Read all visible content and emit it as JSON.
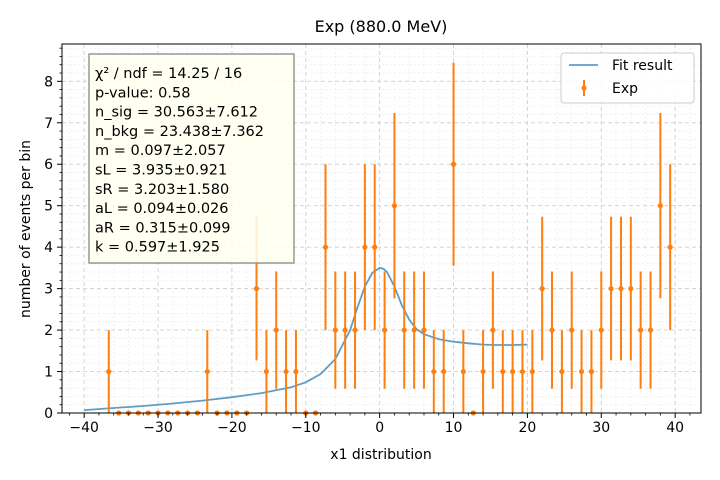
{
  "chart_data": {
    "type": "scatter",
    "title": "Exp (880.0 MeV)",
    "xlabel": "x1 distribution",
    "ylabel": "number of events per bin",
    "xlim": [
      -43,
      43.5
    ],
    "ylim": [
      0,
      8.9
    ],
    "xticks": [
      -40,
      -30,
      -20,
      -10,
      0,
      10,
      20,
      30,
      40
    ],
    "xtick_labels": [
      "−40",
      "−30",
      "−20",
      "−10",
      "0",
      "10",
      "20",
      "30",
      "40"
    ],
    "yticks": [
      0,
      1,
      2,
      3,
      4,
      5,
      6,
      7,
      8
    ],
    "ytick_labels": [
      "0",
      "1",
      "2",
      "3",
      "4",
      "5",
      "6",
      "7",
      "8"
    ],
    "grid": true,
    "legend_position": "top-right",
    "series": [
      {
        "name": "Exp",
        "kind": "errorbar",
        "color": "#ff7f0e",
        "x": [
          -36.67,
          -35.33,
          -34,
          -32.67,
          -31.33,
          -30,
          -28.67,
          -27.33,
          -26,
          -24.67,
          -23.33,
          -22,
          -20.67,
          -19.33,
          -18,
          -16.67,
          -15.33,
          -14,
          -12.67,
          -11.33,
          -10,
          -8.67,
          -7.33,
          -6,
          -4.67,
          -3.33,
          -2,
          -0.67,
          0.67,
          2,
          3.33,
          4.67,
          6,
          7.33,
          8.67,
          10,
          11.33,
          12.67,
          14,
          15.33,
          16.67,
          18,
          19.33,
          20.67,
          22,
          23.33,
          24.67,
          26,
          27.33,
          28.67,
          30,
          31.33,
          32.67,
          34,
          35.33,
          36.67,
          38,
          39.33
        ],
        "y": [
          1,
          0,
          0,
          0,
          0,
          0,
          0,
          0,
          0,
          0,
          1,
          0,
          0,
          0,
          0,
          3,
          1,
          2,
          1,
          1,
          0,
          0,
          4,
          2,
          2,
          2,
          4,
          4,
          2,
          5,
          2,
          2,
          2,
          1,
          1,
          6,
          1,
          0,
          1,
          2,
          1,
          1,
          1,
          1,
          3,
          2,
          1,
          2,
          1,
          1,
          2,
          3,
          3,
          3,
          2,
          2,
          5,
          4
        ]
      },
      {
        "name": "Fit result",
        "kind": "line",
        "color": "#5d9ec7",
        "x": [
          -40,
          -36,
          -32,
          -28,
          -24,
          -20,
          -16,
          -12,
          -10,
          -8,
          -6,
          -4,
          -3,
          -2,
          -1,
          0,
          0.5,
          1,
          2,
          3,
          4,
          5,
          6,
          8,
          10,
          12,
          14,
          16,
          18,
          20
        ],
        "y": [
          0.07,
          0.12,
          0.17,
          0.23,
          0.3,
          0.38,
          0.48,
          0.62,
          0.74,
          0.94,
          1.3,
          2.0,
          2.55,
          3.05,
          3.38,
          3.5,
          3.48,
          3.4,
          3.05,
          2.6,
          2.25,
          2.02,
          1.9,
          1.78,
          1.72,
          1.68,
          1.65,
          1.64,
          1.64,
          1.65
        ]
      }
    ],
    "annotation_lines": [
      "χ² / ndf = 14.25 / 16",
      "p-value: 0.58",
      "n_sig = 30.563±7.612",
      "n_bkg = 23.438±7.362",
      "m = 0.097±2.057",
      "sL = 3.935±0.921",
      "sR = 3.203±1.580",
      "aL = 0.094±0.026",
      "aR = 0.315±0.099",
      "k = 0.597±1.925"
    ]
  }
}
